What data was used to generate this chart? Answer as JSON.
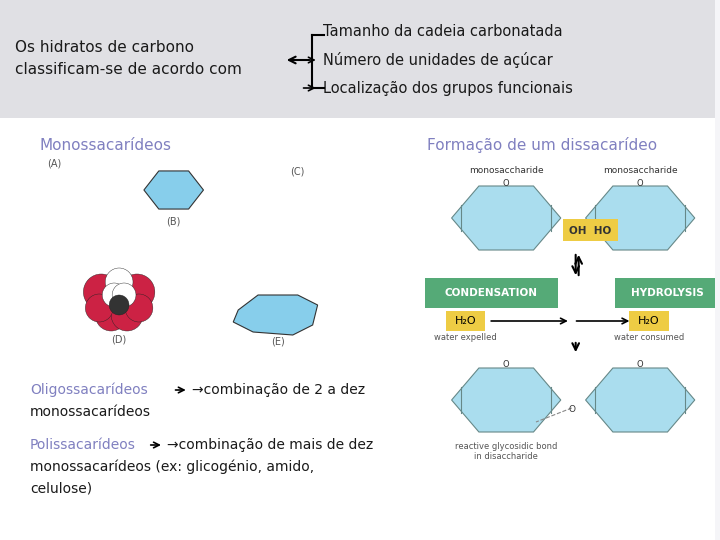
{
  "bg_top": "#dcdce0",
  "bg_bottom": "#f0f0f4",
  "slide_bg": "#f5f5f8",
  "title_line1": "Os hidratos de carbono",
  "title_line2": "classificam-se de acordo com",
  "bullet1": "Tamanho da cadeia carbonatada",
  "bullet2": "Número de unidades de açúcar",
  "bullet3": "Localização dos grupos funcionais",
  "mono_label": "Monossacarídeos",
  "dissac_label": "Formação de um dissacarídeo",
  "oligo_label": "Oligossacarídeos",
  "oligo_arrow": "→combinação de 2 a dez",
  "oligo_cont": "monossacarídeos",
  "polis_label": "Polissacarídeos",
  "polis_arrow": "→combinação de mais de dez",
  "polis_cont1": "monossacarídeos (ex: glicogénio, amido,",
  "polis_cont2": "celulose)",
  "purple_color": "#8080c0",
  "black_text": "#1a1a1a",
  "hex_color": "#aaddee",
  "hex_edge": "#888888",
  "green_box": "#55aa77",
  "yellow_box": "#eecc44",
  "monosac_text_color": "#555533",
  "condensation_text": "CONDENSATION",
  "hydrolysis_text": "HYDROLYSIS",
  "h2o_text": "H₂O",
  "water_expelled": "water expelled",
  "water_consumed": "water consumed",
  "mono_left_label": "monosaccharide",
  "mono_right_label": "monosaccharide",
  "glycosidic_text": "reactive glycosidic bond\nin disaccharide",
  "oh_ho_text": "OH  HO"
}
